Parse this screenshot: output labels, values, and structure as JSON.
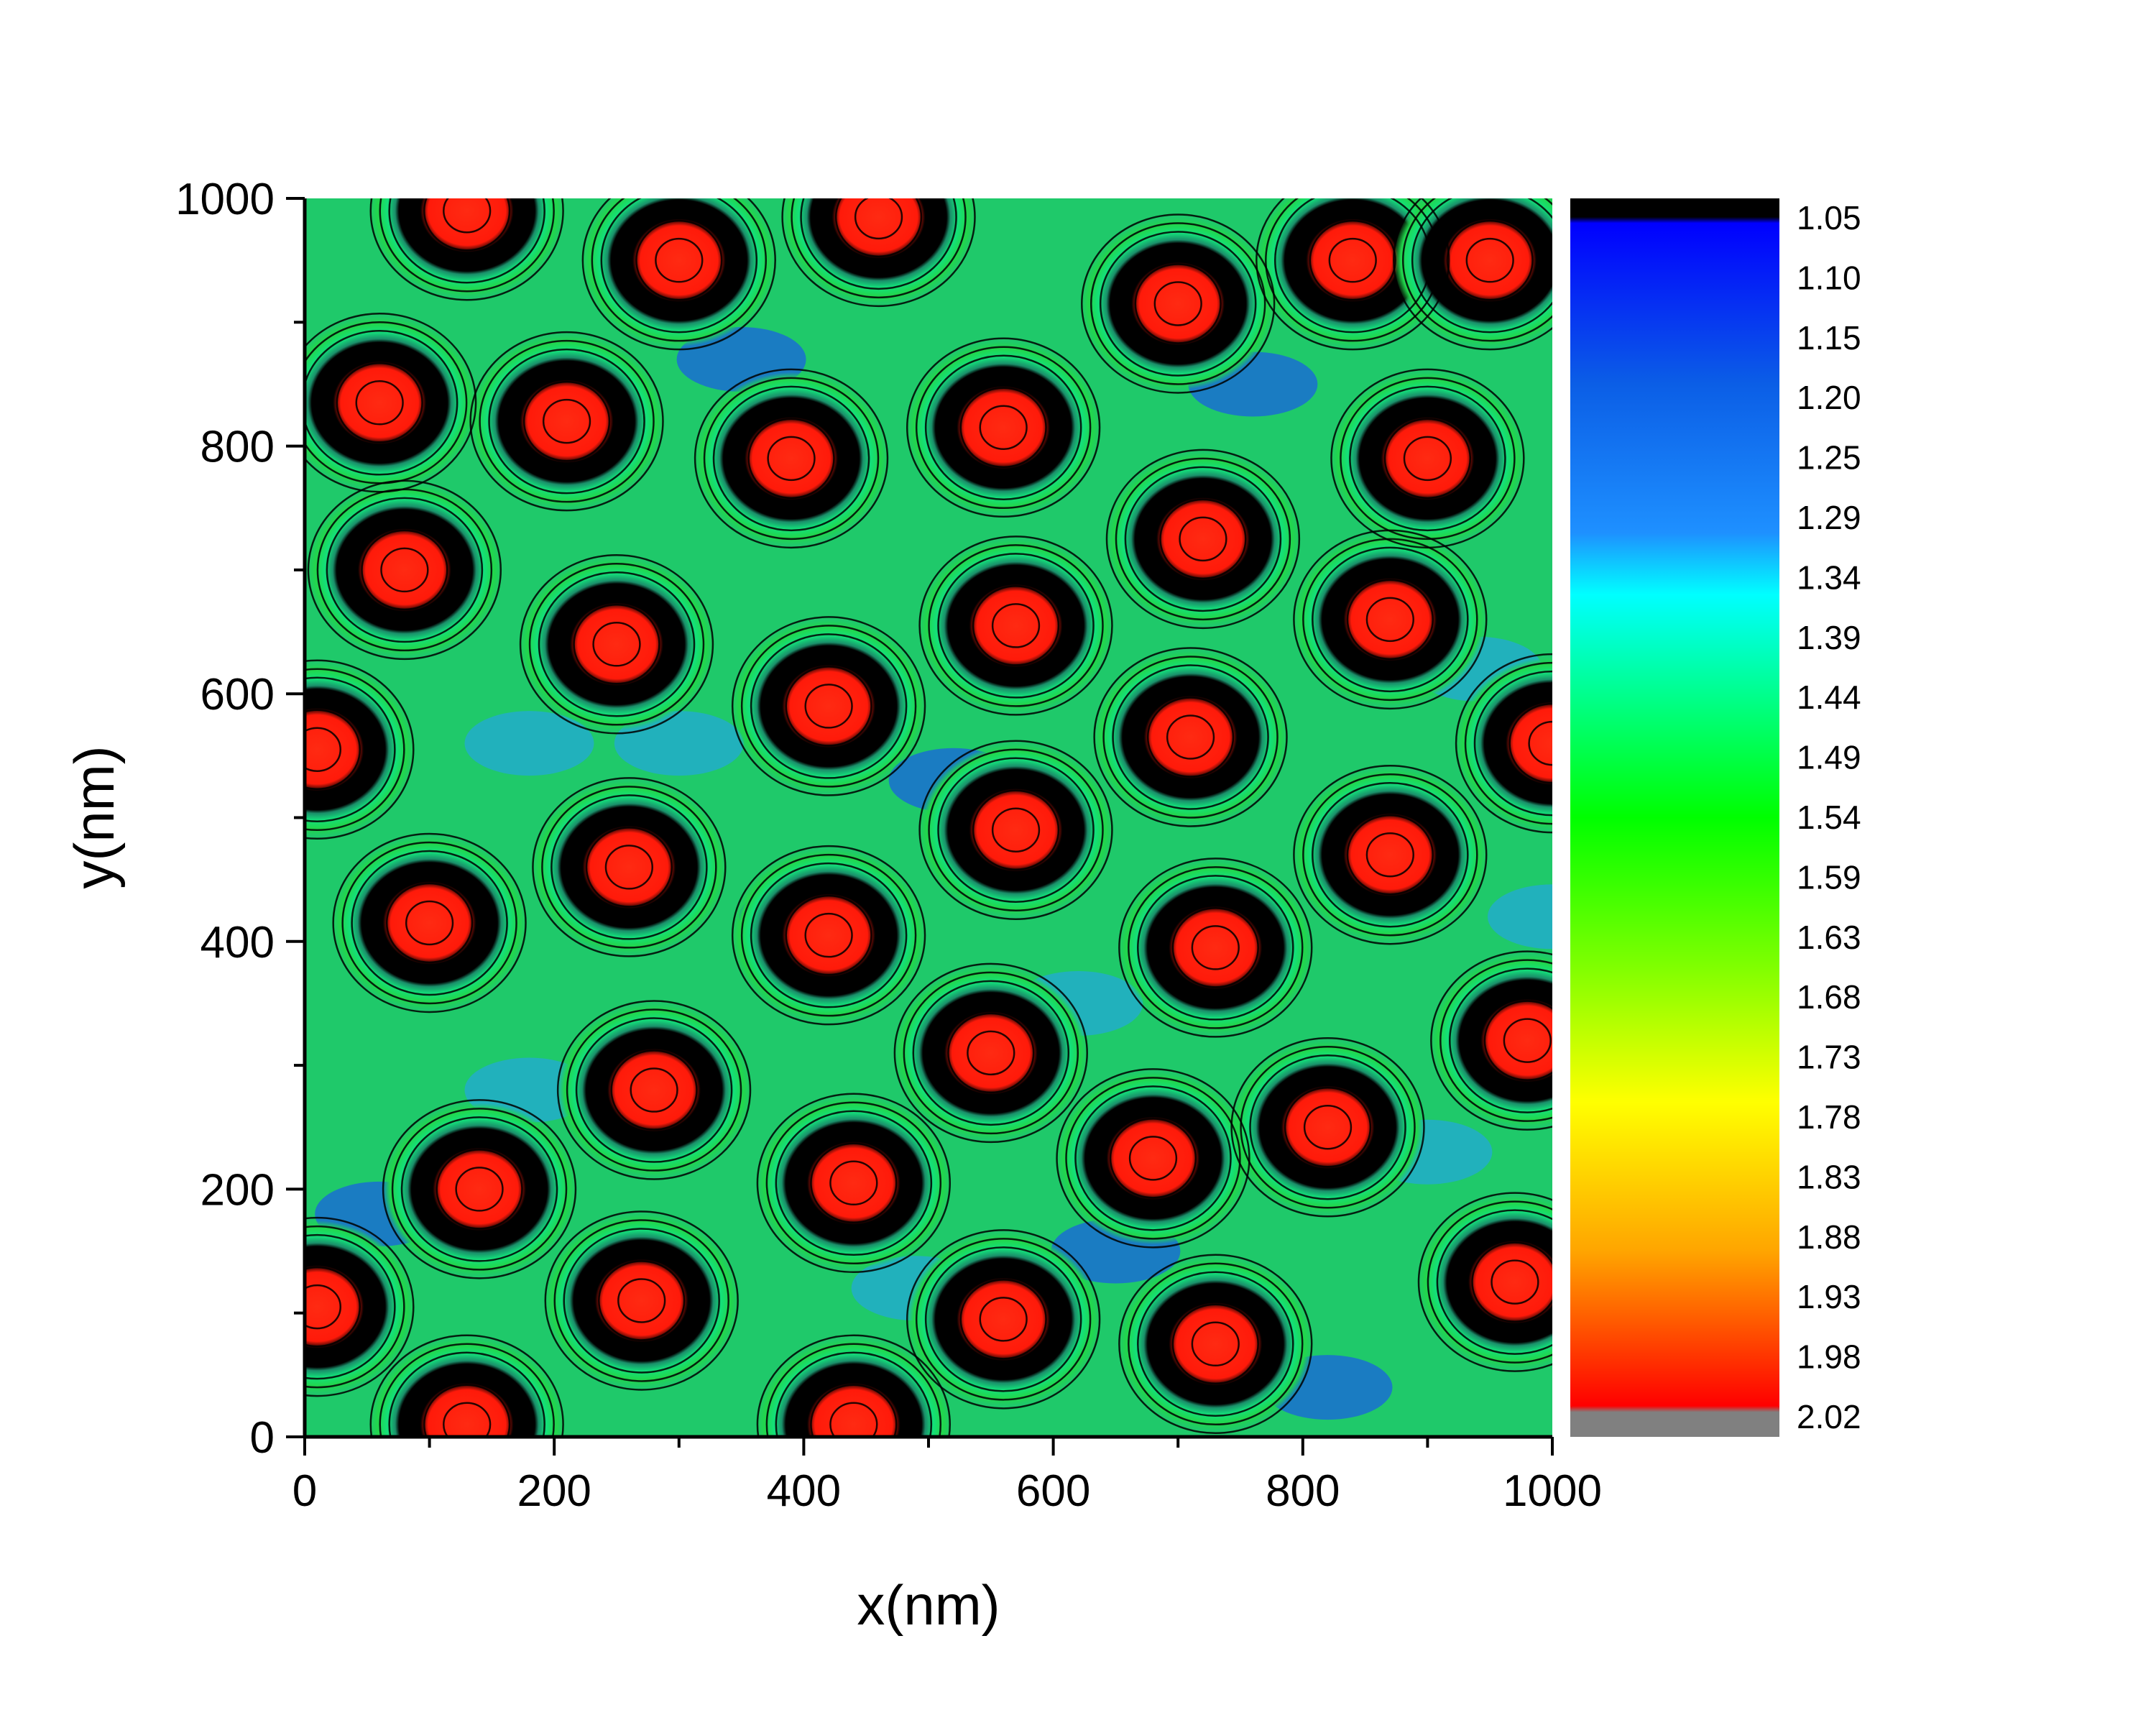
{
  "chart_data": {
    "type": "heatmap",
    "title": "",
    "xlabel": "x(nm)",
    "ylabel": "y(nm)",
    "xlim": [
      0,
      1000
    ],
    "ylim": [
      0,
      1000
    ],
    "x_ticks": [
      "0",
      "200",
      "400",
      "600",
      "800",
      "1000"
    ],
    "y_ticks": [
      "0",
      "200",
      "400",
      "600",
      "800",
      "1000"
    ],
    "colorbar": {
      "range": [
        1.05,
        2.02
      ],
      "labels": [
        "1.05",
        "1.10",
        "1.15",
        "1.20",
        "1.25",
        "1.29",
        "1.34",
        "1.39",
        "1.44",
        "1.49",
        "1.54",
        "1.59",
        "1.63",
        "1.68",
        "1.73",
        "1.78",
        "1.83",
        "1.88",
        "1.93",
        "1.98",
        "2.02"
      ],
      "colors": [
        "#000000",
        "#0000ff",
        "#0b5ee6",
        "#1e90ff",
        "#00ffff",
        "#00ff00",
        "#7fff00",
        "#ffff00",
        "#ffa500",
        "#ff0000",
        "#808080"
      ]
    },
    "contour_lines": true,
    "grid": false,
    "peaks": [
      {
        "x": 130,
        "y": 990
      },
      {
        "x": 300,
        "y": 950
      },
      {
        "x": 460,
        "y": 985
      },
      {
        "x": 700,
        "y": 915
      },
      {
        "x": 840,
        "y": 950
      },
      {
        "x": 950,
        "y": 950
      },
      {
        "x": 60,
        "y": 835
      },
      {
        "x": 210,
        "y": 820
      },
      {
        "x": 390,
        "y": 790
      },
      {
        "x": 560,
        "y": 815
      },
      {
        "x": 720,
        "y": 725
      },
      {
        "x": 900,
        "y": 790
      },
      {
        "x": 80,
        "y": 700
      },
      {
        "x": 250,
        "y": 640
      },
      {
        "x": 570,
        "y": 655
      },
      {
        "x": 870,
        "y": 660
      },
      {
        "x": 10,
        "y": 555
      },
      {
        "x": 420,
        "y": 590
      },
      {
        "x": 710,
        "y": 565
      },
      {
        "x": 1000,
        "y": 560
      },
      {
        "x": 100,
        "y": 415
      },
      {
        "x": 260,
        "y": 460
      },
      {
        "x": 420,
        "y": 405
      },
      {
        "x": 570,
        "y": 490
      },
      {
        "x": 730,
        "y": 395
      },
      {
        "x": 870,
        "y": 470
      },
      {
        "x": 280,
        "y": 280
      },
      {
        "x": 550,
        "y": 310
      },
      {
        "x": 980,
        "y": 320
      },
      {
        "x": 140,
        "y": 200
      },
      {
        "x": 440,
        "y": 205
      },
      {
        "x": 680,
        "y": 225
      },
      {
        "x": 820,
        "y": 250
      },
      {
        "x": 10,
        "y": 105
      },
      {
        "x": 270,
        "y": 110
      },
      {
        "x": 560,
        "y": 95
      },
      {
        "x": 730,
        "y": 75
      },
      {
        "x": 970,
        "y": 125
      },
      {
        "x": 130,
        "y": 10
      },
      {
        "x": 440,
        "y": 10
      }
    ]
  }
}
